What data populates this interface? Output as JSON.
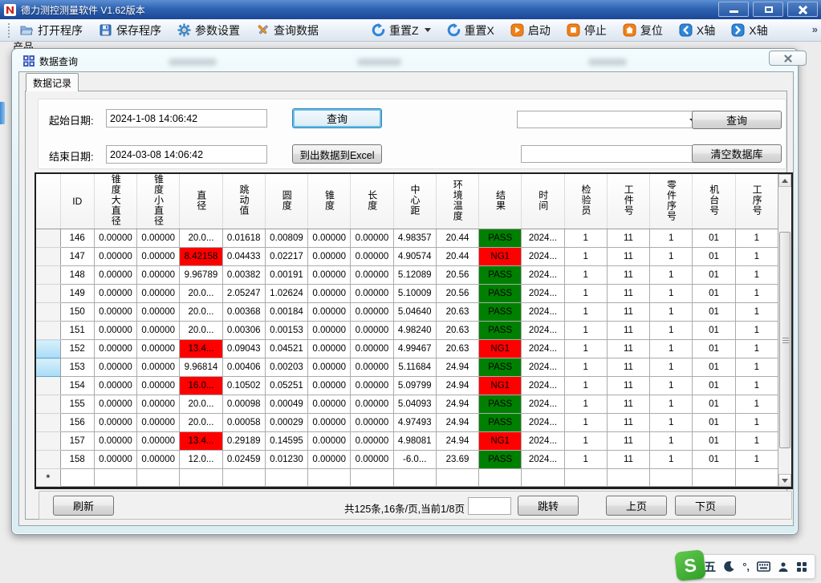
{
  "window": {
    "title": "德力测控测量软件 V1.62版本"
  },
  "toolbar": {
    "items": [
      {
        "label": "打开程序",
        "icon": "open-folder-icon"
      },
      {
        "label": "保存程序",
        "icon": "save-icon"
      },
      {
        "label": "参数设置",
        "icon": "gear-icon"
      },
      {
        "label": "查询数据",
        "icon": "query-tools-icon"
      },
      {
        "label": "重置Z",
        "icon": "reset-icon",
        "dropdown": true
      },
      {
        "label": "重置X",
        "icon": "reset-icon"
      },
      {
        "label": "启动",
        "icon": "start-icon"
      },
      {
        "label": "停止",
        "icon": "stop-icon"
      },
      {
        "label": "复位",
        "icon": "home-icon"
      },
      {
        "label": "X轴",
        "icon": "axis-left-icon"
      },
      {
        "label": "X轴",
        "icon": "axis-right-icon"
      }
    ],
    "overflow_glyph": "»"
  },
  "background": {
    "product_label": "产品"
  },
  "dialog": {
    "title": "数据查询",
    "tab_label": "数据记录",
    "form": {
      "start_label": "起始日期:",
      "start_value": "2024-1-08 14:06:42",
      "end_label": "结束日期:",
      "end_value": "2024-03-08 14:06:42",
      "query_button": "查询",
      "export_button": "到出数据到Excel",
      "combo_value": "",
      "filter_value": "",
      "query_button2": "查询",
      "clear_db_button": "清空数据库"
    },
    "table": {
      "columns": [
        "ID",
        "锥度大直径",
        "锥度小直径",
        "直径",
        "跳动值",
        "圆度",
        "锥度",
        "长度",
        "中心距",
        "环境温度",
        "结果",
        "时间",
        "检验员",
        "工件号",
        "零件序号",
        "机台号",
        "工序号"
      ],
      "new_row_marker": "*",
      "rows": [
        {
          "selected": false,
          "cells": [
            {
              "v": "146"
            },
            {
              "v": "0.00000"
            },
            {
              "v": "0.00000"
            },
            {
              "v": "20.0..."
            },
            {
              "v": "0.01618"
            },
            {
              "v": "0.00809"
            },
            {
              "v": "0.00000"
            },
            {
              "v": "0.00000"
            },
            {
              "v": "4.98357"
            },
            {
              "v": "20.44"
            },
            {
              "v": "PASS",
              "bg": "#008000"
            },
            {
              "v": "2024..."
            },
            {
              "v": "1"
            },
            {
              "v": "11"
            },
            {
              "v": "1"
            },
            {
              "v": "01"
            },
            {
              "v": "1"
            }
          ]
        },
        {
          "selected": false,
          "cells": [
            {
              "v": "147"
            },
            {
              "v": "0.00000"
            },
            {
              "v": "0.00000"
            },
            {
              "v": "8.42158",
              "bg": "#ff0000"
            },
            {
              "v": "0.04433"
            },
            {
              "v": "0.02217"
            },
            {
              "v": "0.00000"
            },
            {
              "v": "0.00000"
            },
            {
              "v": "4.90574"
            },
            {
              "v": "20.44"
            },
            {
              "v": "NG1",
              "bg": "#ff0000"
            },
            {
              "v": "2024..."
            },
            {
              "v": "1"
            },
            {
              "v": "11"
            },
            {
              "v": "1"
            },
            {
              "v": "01"
            },
            {
              "v": "1"
            }
          ]
        },
        {
          "selected": false,
          "cells": [
            {
              "v": "148"
            },
            {
              "v": "0.00000"
            },
            {
              "v": "0.00000"
            },
            {
              "v": "9.96789"
            },
            {
              "v": "0.00382"
            },
            {
              "v": "0.00191"
            },
            {
              "v": "0.00000"
            },
            {
              "v": "0.00000"
            },
            {
              "v": "5.12089"
            },
            {
              "v": "20.56"
            },
            {
              "v": "PASS",
              "bg": "#008000"
            },
            {
              "v": "2024..."
            },
            {
              "v": "1"
            },
            {
              "v": "11"
            },
            {
              "v": "1"
            },
            {
              "v": "01"
            },
            {
              "v": "1"
            }
          ]
        },
        {
          "selected": false,
          "cells": [
            {
              "v": "149"
            },
            {
              "v": "0.00000"
            },
            {
              "v": "0.00000"
            },
            {
              "v": "20.0..."
            },
            {
              "v": "2.05247"
            },
            {
              "v": "1.02624"
            },
            {
              "v": "0.00000"
            },
            {
              "v": "0.00000"
            },
            {
              "v": "5.10009"
            },
            {
              "v": "20.56"
            },
            {
              "v": "PASS",
              "bg": "#008000"
            },
            {
              "v": "2024..."
            },
            {
              "v": "1"
            },
            {
              "v": "11"
            },
            {
              "v": "1"
            },
            {
              "v": "01"
            },
            {
              "v": "1"
            }
          ]
        },
        {
          "selected": false,
          "cells": [
            {
              "v": "150"
            },
            {
              "v": "0.00000"
            },
            {
              "v": "0.00000"
            },
            {
              "v": "20.0..."
            },
            {
              "v": "0.00368"
            },
            {
              "v": "0.00184"
            },
            {
              "v": "0.00000"
            },
            {
              "v": "0.00000"
            },
            {
              "v": "5.04640"
            },
            {
              "v": "20.63"
            },
            {
              "v": "PASS",
              "bg": "#008000"
            },
            {
              "v": "2024..."
            },
            {
              "v": "1"
            },
            {
              "v": "11"
            },
            {
              "v": "1"
            },
            {
              "v": "01"
            },
            {
              "v": "1"
            }
          ]
        },
        {
          "selected": false,
          "cells": [
            {
              "v": "151"
            },
            {
              "v": "0.00000"
            },
            {
              "v": "0.00000"
            },
            {
              "v": "20.0..."
            },
            {
              "v": "0.00306"
            },
            {
              "v": "0.00153"
            },
            {
              "v": "0.00000"
            },
            {
              "v": "0.00000"
            },
            {
              "v": "4.98240"
            },
            {
              "v": "20.63"
            },
            {
              "v": "PASS",
              "bg": "#008000"
            },
            {
              "v": "2024..."
            },
            {
              "v": "1"
            },
            {
              "v": "11"
            },
            {
              "v": "1"
            },
            {
              "v": "01"
            },
            {
              "v": "1"
            }
          ]
        },
        {
          "selected": true,
          "cells": [
            {
              "v": "152"
            },
            {
              "v": "0.00000"
            },
            {
              "v": "0.00000"
            },
            {
              "v": "13.4...",
              "bg": "#ff0000"
            },
            {
              "v": "0.09043"
            },
            {
              "v": "0.04521"
            },
            {
              "v": "0.00000"
            },
            {
              "v": "0.00000"
            },
            {
              "v": "4.99467"
            },
            {
              "v": "20.63"
            },
            {
              "v": "NG1",
              "bg": "#ff0000"
            },
            {
              "v": "2024..."
            },
            {
              "v": "1"
            },
            {
              "v": "11"
            },
            {
              "v": "1"
            },
            {
              "v": "01"
            },
            {
              "v": "1"
            }
          ]
        },
        {
          "selected": true,
          "cells": [
            {
              "v": "153"
            },
            {
              "v": "0.00000"
            },
            {
              "v": "0.00000"
            },
            {
              "v": "9.96814"
            },
            {
              "v": "0.00406"
            },
            {
              "v": "0.00203"
            },
            {
              "v": "0.00000"
            },
            {
              "v": "0.00000"
            },
            {
              "v": "5.11684"
            },
            {
              "v": "24.94"
            },
            {
              "v": "PASS",
              "bg": "#008000"
            },
            {
              "v": "2024..."
            },
            {
              "v": "1"
            },
            {
              "v": "11"
            },
            {
              "v": "1"
            },
            {
              "v": "01"
            },
            {
              "v": "1"
            }
          ]
        },
        {
          "selected": false,
          "cells": [
            {
              "v": "154"
            },
            {
              "v": "0.00000"
            },
            {
              "v": "0.00000"
            },
            {
              "v": "16.0...",
              "bg": "#ff0000"
            },
            {
              "v": "0.10502"
            },
            {
              "v": "0.05251"
            },
            {
              "v": "0.00000"
            },
            {
              "v": "0.00000"
            },
            {
              "v": "5.09799"
            },
            {
              "v": "24.94"
            },
            {
              "v": "NG1",
              "bg": "#ff0000"
            },
            {
              "v": "2024..."
            },
            {
              "v": "1"
            },
            {
              "v": "11"
            },
            {
              "v": "1"
            },
            {
              "v": "01"
            },
            {
              "v": "1"
            }
          ]
        },
        {
          "selected": false,
          "cells": [
            {
              "v": "155"
            },
            {
              "v": "0.00000"
            },
            {
              "v": "0.00000"
            },
            {
              "v": "20.0..."
            },
            {
              "v": "0.00098"
            },
            {
              "v": "0.00049"
            },
            {
              "v": "0.00000"
            },
            {
              "v": "0.00000"
            },
            {
              "v": "5.04093"
            },
            {
              "v": "24.94"
            },
            {
              "v": "PASS",
              "bg": "#008000"
            },
            {
              "v": "2024..."
            },
            {
              "v": "1"
            },
            {
              "v": "11"
            },
            {
              "v": "1"
            },
            {
              "v": "01"
            },
            {
              "v": "1"
            }
          ]
        },
        {
          "selected": false,
          "cells": [
            {
              "v": "156"
            },
            {
              "v": "0.00000"
            },
            {
              "v": "0.00000"
            },
            {
              "v": "20.0..."
            },
            {
              "v": "0.00058"
            },
            {
              "v": "0.00029"
            },
            {
              "v": "0.00000"
            },
            {
              "v": "0.00000"
            },
            {
              "v": "4.97493"
            },
            {
              "v": "24.94"
            },
            {
              "v": "PASS",
              "bg": "#008000"
            },
            {
              "v": "2024..."
            },
            {
              "v": "1"
            },
            {
              "v": "11"
            },
            {
              "v": "1"
            },
            {
              "v": "01"
            },
            {
              "v": "1"
            }
          ]
        },
        {
          "selected": false,
          "cells": [
            {
              "v": "157"
            },
            {
              "v": "0.00000"
            },
            {
              "v": "0.00000"
            },
            {
              "v": "13.4...",
              "bg": "#ff0000"
            },
            {
              "v": "0.29189"
            },
            {
              "v": "0.14595"
            },
            {
              "v": "0.00000"
            },
            {
              "v": "0.00000"
            },
            {
              "v": "4.98081"
            },
            {
              "v": "24.94"
            },
            {
              "v": "NG1",
              "bg": "#ff0000"
            },
            {
              "v": "2024..."
            },
            {
              "v": "1"
            },
            {
              "v": "11"
            },
            {
              "v": "1"
            },
            {
              "v": "01"
            },
            {
              "v": "1"
            }
          ]
        },
        {
          "selected": false,
          "cells": [
            {
              "v": "158"
            },
            {
              "v": "0.00000"
            },
            {
              "v": "0.00000"
            },
            {
              "v": "12.0..."
            },
            {
              "v": "0.02459"
            },
            {
              "v": "0.01230"
            },
            {
              "v": "0.00000"
            },
            {
              "v": "0.00000"
            },
            {
              "v": "-6.0..."
            },
            {
              "v": "23.69"
            },
            {
              "v": "PASS",
              "bg": "#008000"
            },
            {
              "v": "2024..."
            },
            {
              "v": "1"
            },
            {
              "v": "11"
            },
            {
              "v": "1"
            },
            {
              "v": "01"
            },
            {
              "v": "1"
            }
          ]
        }
      ]
    },
    "pagination": {
      "refresh_button": "刷新",
      "summary": "共125条,16条/页,当前1/8页",
      "page_input_value": "",
      "goto_button": "跳转",
      "prev_button": "上页",
      "next_button": "下页"
    }
  },
  "ime": {
    "logo_letter": "S",
    "wubi_label": "五",
    "punct_label": "°,"
  },
  "colors": {
    "pass_green": "#008000",
    "fail_red": "#ff0000",
    "titlebar_blue": "#2f63b2",
    "accent_orange": "#f08019",
    "accent_blue": "#2f86d6"
  }
}
